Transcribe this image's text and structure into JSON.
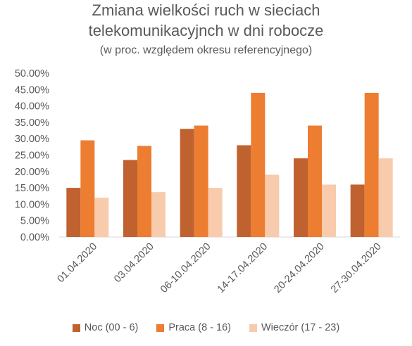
{
  "chart_data": {
    "type": "bar",
    "title_line1": "Zmiana wielkości ruch w sieciach",
    "title_line2": "telekomunikacyjnch w dni robocze",
    "subtitle": "(w proc. względem okresu referencyjnego)",
    "categories": [
      "01.04.2020",
      "03.04.2020",
      "06-10.04.2020",
      "14-17.04.2020",
      "20-24.04.2020",
      "27-30.04.2020"
    ],
    "series": [
      {
        "name": "Noc (00 - 6)",
        "color": "#C0622F",
        "values": [
          15.0,
          23.5,
          33.0,
          28.0,
          24.0,
          16.0
        ]
      },
      {
        "name": "Praca (8 - 16)",
        "color": "#ED7D31",
        "values": [
          29.5,
          27.8,
          34.0,
          44.0,
          34.0,
          44.0
        ]
      },
      {
        "name": "Wieczór (17 - 23)",
        "color": "#F8CBAD",
        "values": [
          12.0,
          13.7,
          15.0,
          19.0,
          16.0,
          24.0
        ]
      }
    ],
    "yticks": [
      "0.00%",
      "5.00%",
      "10.00%",
      "15.00%",
      "20.00%",
      "25.00%",
      "30.00%",
      "35.00%",
      "40.00%",
      "45.00%",
      "50.00%"
    ],
    "ylim": [
      0,
      50
    ],
    "grid": false,
    "legend_position": "bottom"
  }
}
